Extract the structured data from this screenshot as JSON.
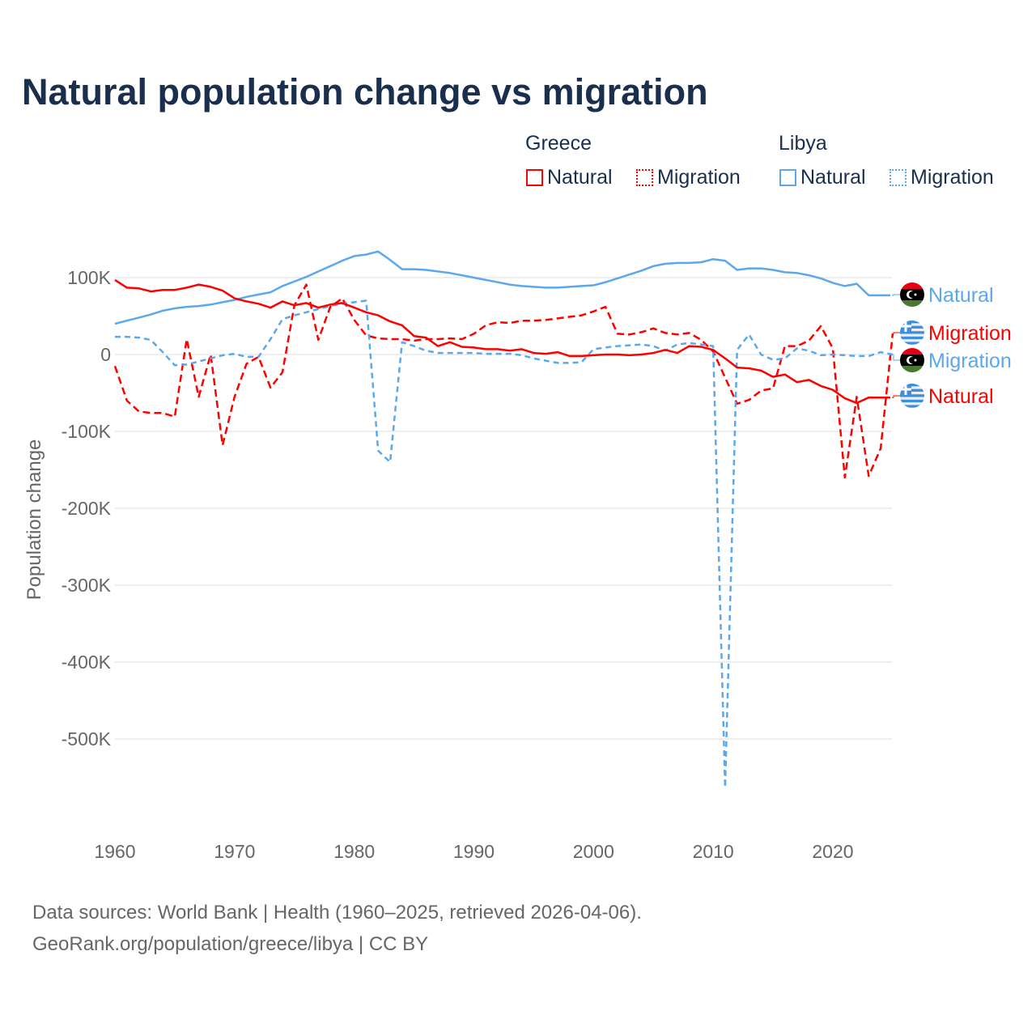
{
  "title": "Natural population change vs migration",
  "legend": {
    "groups": [
      {
        "name": "Greece",
        "items": [
          {
            "label": "Natural",
            "style": "solid",
            "color": "#ff0000"
          },
          {
            "label": "Migration",
            "style": "dotted",
            "color": "#ff0000"
          }
        ]
      },
      {
        "name": "Libya",
        "items": [
          {
            "label": "Natural",
            "style": "solid",
            "color": "#5ba8ec"
          },
          {
            "label": "Migration",
            "style": "dotted",
            "color": "#5ba8ec"
          }
        ]
      }
    ]
  },
  "footer": {
    "line1": "Data sources: World Bank | Health (1960–2025, retrieved 2026-04-06).",
    "line2": "GeoRank.org/population/greece/libya | CC BY"
  },
  "chart_data": {
    "type": "line",
    "title": "Natural population change vs migration",
    "xlabel": "",
    "ylabel": "Population change",
    "xlim": [
      1960,
      2025
    ],
    "ylim": [
      -600000,
      140000
    ],
    "grid": true,
    "x_ticks": [
      {
        "v": 1960,
        "label": "1960"
      },
      {
        "v": 1970,
        "label": "1970"
      },
      {
        "v": 1980,
        "label": "1980"
      },
      {
        "v": 1990,
        "label": "1990"
      },
      {
        "v": 2000,
        "label": "2000"
      },
      {
        "v": 2010,
        "label": "2010"
      },
      {
        "v": 2020,
        "label": "2020"
      }
    ],
    "y_ticks": [
      {
        "v": 100000,
        "label": "100K"
      },
      {
        "v": 0,
        "label": "0"
      },
      {
        "v": -100000,
        "label": "-100K"
      },
      {
        "v": -200000,
        "label": "-200K"
      },
      {
        "v": -300000,
        "label": "-300K"
      },
      {
        "v": -400000,
        "label": "-400K"
      },
      {
        "v": -500000,
        "label": "-500K"
      }
    ],
    "legend_placement": "top-right",
    "start_year": 1960,
    "series": [
      {
        "name": "Libya Natural",
        "end_label": "Natural",
        "country": "Libya",
        "color": "#5ba8ec",
        "dash": "",
        "unit": "thousands",
        "values": [
          40,
          44,
          48,
          52,
          57,
          60,
          62,
          63,
          65,
          68,
          71,
          75,
          78,
          81,
          89,
          95,
          101,
          108,
          115,
          122,
          128,
          130,
          134,
          123,
          111,
          111,
          110,
          108,
          106,
          103,
          100,
          97,
          94,
          91,
          89,
          88,
          87,
          87,
          88,
          89,
          90,
          94,
          99,
          104,
          109,
          115,
          118,
          119,
          119,
          120,
          124,
          122,
          110,
          112,
          112,
          110,
          107,
          106,
          103,
          99,
          93,
          89,
          92,
          77,
          77
        ]
      },
      {
        "name": "Greece Migration",
        "end_label": "Migration",
        "country": "Greece",
        "color": "#ff0000",
        "dash": "9,5",
        "unit": "thousands",
        "values": [
          -15,
          -60,
          -74,
          -76,
          -76,
          -81,
          20,
          -55,
          0,
          -118,
          -55,
          -12,
          -3,
          -43,
          -23,
          64,
          91,
          19,
          62,
          73,
          45,
          25,
          21,
          20,
          20,
          18,
          20,
          20,
          21,
          20,
          27,
          38,
          42,
          41,
          44,
          44,
          45,
          47,
          49,
          51,
          56,
          62,
          27,
          26,
          29,
          34,
          28,
          26,
          28,
          19,
          4,
          -30,
          -64,
          -59,
          -47,
          -44,
          11,
          11,
          18,
          37,
          8,
          -160,
          -55,
          -158,
          -122,
          27
        ]
      },
      {
        "name": "Libya Migration",
        "end_label": "Migration",
        "country": "Libya",
        "color": "#5ba8ec",
        "dash": "7,5",
        "unit": "thousands",
        "values": [
          23,
          23,
          22,
          19,
          3,
          -14,
          -13,
          -9,
          -5,
          -1,
          1,
          -3,
          -3,
          20,
          46,
          51,
          55,
          59,
          63,
          66,
          68,
          70,
          -125,
          -140,
          16,
          11,
          5,
          2,
          2,
          2,
          2,
          1,
          1,
          1,
          -1,
          -5,
          -8,
          -11,
          -11,
          -10,
          7,
          9,
          11,
          12,
          13,
          11,
          5,
          13,
          15,
          13,
          11,
          -563,
          6,
          26,
          0,
          -7,
          -5,
          8,
          5,
          -1,
          0,
          -1,
          -2,
          -2,
          3,
          0
        ]
      },
      {
        "name": "Greece Natural",
        "end_label": "Natural",
        "country": "Greece",
        "color": "#ff0000",
        "dash": "",
        "unit": "thousands",
        "values": [
          97,
          87,
          86,
          82,
          84,
          84,
          87,
          91,
          88,
          83,
          73,
          69,
          66,
          61,
          69,
          64,
          67,
          61,
          65,
          67,
          61,
          55,
          51,
          43,
          38,
          24,
          22,
          11,
          16,
          10,
          9,
          7,
          7,
          5,
          7,
          2,
          1,
          3,
          -2,
          -2,
          -1,
          0,
          0,
          -1,
          0,
          2,
          6,
          2,
          11,
          10,
          6,
          -5,
          -17,
          -18,
          -21,
          -29,
          -26,
          -36,
          -33,
          -41,
          -46,
          -57,
          -63,
          -56,
          -56
        ]
      }
    ]
  }
}
